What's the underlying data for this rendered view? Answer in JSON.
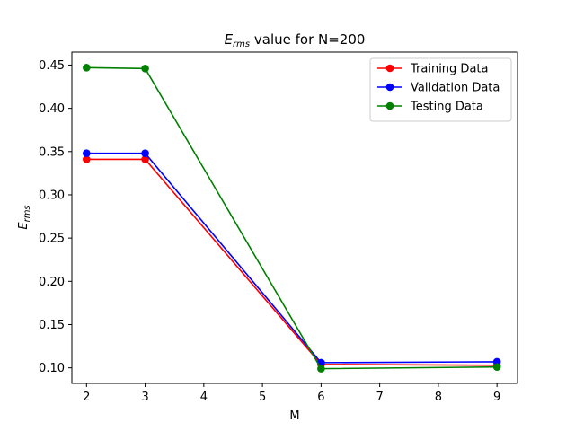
{
  "chart_data": {
    "type": "line",
    "title": {
      "main": "E",
      "subscript": "rms",
      "rest": " value for N=200"
    },
    "xlabel": "M",
    "ylabel": {
      "main": "E",
      "subscript": "rms"
    },
    "x": [
      2,
      3,
      6,
      9
    ],
    "xlim": [
      1.75,
      9.35
    ],
    "ylim": [
      0.082,
      0.465
    ],
    "xticks": [
      2,
      3,
      4,
      5,
      6,
      7,
      8,
      9
    ],
    "yticks": [
      0.1,
      0.15,
      0.2,
      0.25,
      0.3,
      0.35,
      0.4,
      0.45
    ],
    "grid": false,
    "legend_position": "top-right",
    "series": [
      {
        "name": "Training Data",
        "color": "#ff0000",
        "values": [
          0.341,
          0.341,
          0.104,
          0.103
        ]
      },
      {
        "name": "Validation Data",
        "color": "#0000ff",
        "values": [
          0.348,
          0.348,
          0.106,
          0.107
        ]
      },
      {
        "name": "Testing Data",
        "color": "#008000",
        "values": [
          0.447,
          0.446,
          0.099,
          0.101
        ]
      }
    ]
  }
}
